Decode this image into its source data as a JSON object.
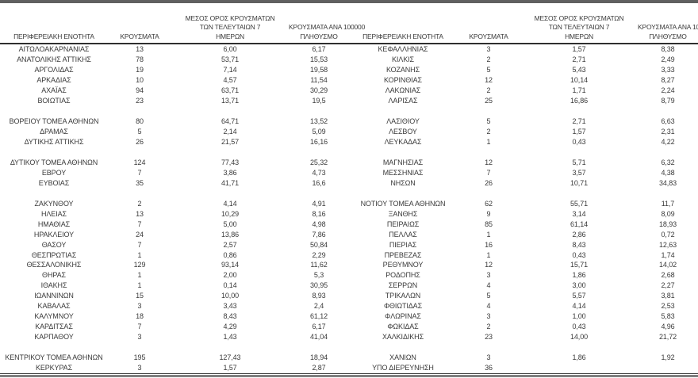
{
  "colors": {
    "background": "#ffffff",
    "text": "#3a3a3a",
    "top_rule": "#606060",
    "header_rule": "#2f2f2f",
    "bottom_rule_thin": "#3f3f3f",
    "bottom_rule_thick": "#808080"
  },
  "header": {
    "region": "ΠΕΡΙΦΕΡΕΙΑΚΗ ΕΝΟΤΗΤΑ",
    "cases": "ΚΡΟΥΣΜΑΤΑ",
    "avg7_lines": [
      "ΜΕΣΟΣ ΟΡΟΣ ΚΡΟΥΣΜΑΤΩΝ",
      "ΤΩΝ ΤΕΛΕΥΤΑΙΩΝ 7",
      "ΗΜΕΡΩΝ"
    ],
    "per100k_lines": [
      "ΚΡΟΥΣΜΑΤΑ ΑΝΑ 100000",
      "ΠΛΗΘΥΣΜΟ"
    ]
  },
  "tables": [
    {
      "rows": [
        [
          "ΑΙΤΩΛΟΑΚΑΡΝΑΝΙΑΣ",
          "13",
          "6,00",
          "6,17"
        ],
        [
          "ΑΝΑΤΟΛΙΚΗΣ ΑΤΤΙΚΗΣ",
          "78",
          "53,71",
          "15,53"
        ],
        [
          "ΑΡΓΟΛΙΔΑΣ",
          "19",
          "7,14",
          "19,58"
        ],
        [
          "ΑΡΚΑΔΙΑΣ",
          "10",
          "4,57",
          "11,54"
        ],
        [
          "ΑΧΑΪΑΣ",
          "94",
          "63,71",
          "30,29"
        ],
        [
          "ΒΟΙΩΤΙΑΣ",
          "23",
          "13,71",
          "19,5"
        ],
        [
          "",
          "",
          "",
          ""
        ],
        [
          "ΒΟΡΕΙΟΥ ΤΟΜΕΑ ΑΘΗΝΩΝ",
          "80",
          "64,71",
          "13,52"
        ],
        [
          "ΔΡΑΜΑΣ",
          "5",
          "2,14",
          "5,09"
        ],
        [
          "ΔΥΤΙΚΗΣ ΑΤΤΙΚΗΣ",
          "26",
          "21,57",
          "16,16"
        ],
        [
          "",
          "",
          "",
          ""
        ],
        [
          "ΔΥΤΙΚΟΥ ΤΟΜΕΑ ΑΘΗΝΩΝ",
          "124",
          "77,43",
          "25,32"
        ],
        [
          "ΕΒΡΟΥ",
          "7",
          "3,86",
          "4,73"
        ],
        [
          "ΕΥΒΟΙΑΣ",
          "35",
          "41,71",
          "16,6"
        ],
        [
          "",
          "",
          "",
          ""
        ],
        [
          "ΖΑΚΥΝΘΟΥ",
          "2",
          "4,14",
          "4,91"
        ],
        [
          "ΗΛΕΙΑΣ",
          "13",
          "10,29",
          "8,16"
        ],
        [
          "ΗΜΑΘΙΑΣ",
          "7",
          "5,00",
          "4,98"
        ],
        [
          "ΗΡΑΚΛΕΙΟΥ",
          "24",
          "13,86",
          "7,86"
        ],
        [
          "ΘΑΣΟΥ",
          "7",
          "2,57",
          "50,84"
        ],
        [
          "ΘΕΣΠΡΩΤΙΑΣ",
          "1",
          "0,86",
          "2,29"
        ],
        [
          "ΘΕΣΣΑΛΟΝΙΚΗΣ",
          "129",
          "93,14",
          "11,62"
        ],
        [
          "ΘΗΡΑΣ",
          "1",
          "2,00",
          "5,3"
        ],
        [
          "ΙΘΑΚΗΣ",
          "1",
          "0,14",
          "30,95"
        ],
        [
          "ΙΩΑΝΝΙΝΩΝ",
          "15",
          "10,00",
          "8,93"
        ],
        [
          "ΚΑΒΑΛΑΣ",
          "3",
          "3,43",
          "2,4"
        ],
        [
          "ΚΑΛΥΜΝΟΥ",
          "18",
          "8,43",
          "61,12"
        ],
        [
          "ΚΑΡΔΙΤΣΑΣ",
          "7",
          "4,29",
          "6,17"
        ],
        [
          "ΚΑΡΠΑΘΟΥ",
          "3",
          "1,43",
          "41,04"
        ],
        [
          "",
          "",
          "",
          ""
        ],
        [
          "ΚΕΝΤΡΙΚΟΥ ΤΟΜΕΑ ΑΘΗΝΩΝ",
          "195",
          "127,43",
          "18,94"
        ],
        [
          "ΚΕΡΚΥΡΑΣ",
          "3",
          "1,57",
          "2,87"
        ]
      ]
    },
    {
      "rows": [
        [
          "ΚΕΦΑΛΛΗΝΙΑΣ",
          "3",
          "1,57",
          "8,38"
        ],
        [
          "ΚΙΛΚΙΣ",
          "2",
          "2,71",
          "2,49"
        ],
        [
          "ΚΟΖΑΝΗΣ",
          "5",
          "5,43",
          "3,33"
        ],
        [
          "ΚΟΡΙΝΘΙΑΣ",
          "12",
          "10,14",
          "8,27"
        ],
        [
          "ΛΑΚΩΝΙΑΣ",
          "2",
          "1,71",
          "2,24"
        ],
        [
          "ΛΑΡΙΣΑΣ",
          "25",
          "16,86",
          "8,79"
        ],
        [
          "",
          "",
          "",
          ""
        ],
        [
          "ΛΑΣΙΘΙΟΥ",
          "5",
          "2,71",
          "6,63"
        ],
        [
          "ΛΕΣΒΟΥ",
          "2",
          "1,57",
          "2,31"
        ],
        [
          "ΛΕΥΚΑΔΑΣ",
          "1",
          "0,43",
          "4,22"
        ],
        [
          "",
          "",
          "",
          ""
        ],
        [
          "ΜΑΓΝΗΣΙΑΣ",
          "12",
          "5,71",
          "6,32"
        ],
        [
          "ΜΕΣΣΗΝΙΑΣ",
          "7",
          "3,57",
          "4,38"
        ],
        [
          "ΝΗΣΩΝ",
          "26",
          "10,71",
          "34,83"
        ],
        [
          "",
          "",
          "",
          ""
        ],
        [
          "ΝΟΤΙΟΥ ΤΟΜΕΑ ΑΘΗΝΩΝ",
          "62",
          "55,71",
          "11,7"
        ],
        [
          "ΞΑΝΘΗΣ",
          "9",
          "3,14",
          "8,09"
        ],
        [
          "ΠΕΙΡΑΙΩΣ",
          "85",
          "61,14",
          "18,93"
        ],
        [
          "ΠΕΛΛΑΣ",
          "1",
          "2,86",
          "0,72"
        ],
        [
          "ΠΙΕΡΙΑΣ",
          "16",
          "8,43",
          "12,63"
        ],
        [
          "ΠΡΕΒΕΖΑΣ",
          "1",
          "0,43",
          "1,74"
        ],
        [
          "ΡΕΘΥΜΝΟΥ",
          "12",
          "15,71",
          "14,02"
        ],
        [
          "ΡΟΔΟΠΗΣ",
          "3",
          "1,86",
          "2,68"
        ],
        [
          "ΣΕΡΡΩΝ",
          "4",
          "3,00",
          "2,27"
        ],
        [
          "ΤΡΙΚΑΛΩΝ",
          "5",
          "5,57",
          "3,81"
        ],
        [
          "ΦΘΙΩΤΙΔΑΣ",
          "4",
          "4,14",
          "2,53"
        ],
        [
          "ΦΛΩΡΙΝΑΣ",
          "3",
          "1,00",
          "5,83"
        ],
        [
          "ΦΩΚΙΔΑΣ",
          "2",
          "0,43",
          "4,96"
        ],
        [
          "ΧΑΛΚΙΔΙΚΗΣ",
          "23",
          "14,00",
          "21,72"
        ],
        [
          "",
          "",
          "",
          ""
        ],
        [
          "ΧΑΝΙΩΝ",
          "3",
          "1,86",
          "1,92"
        ],
        [
          "ΥΠΟ ΔΙΕΡΕΥΝΗΣΗ",
          "36",
          "",
          ""
        ]
      ]
    }
  ]
}
